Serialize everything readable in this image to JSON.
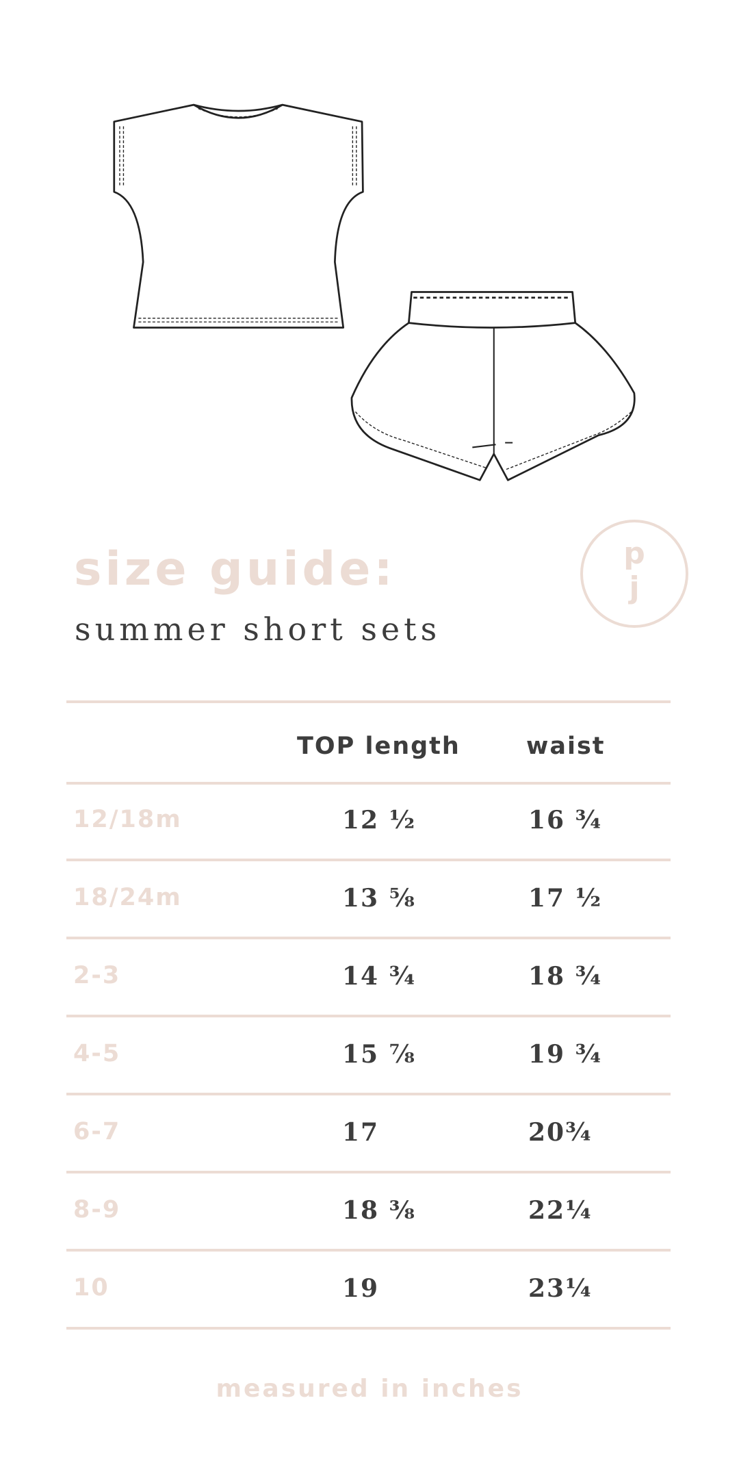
{
  "header": {
    "title": "size guide:",
    "subtitle": "summer short sets"
  },
  "logo": {
    "letters": [
      "p",
      "j"
    ]
  },
  "table": {
    "columns": [
      "",
      "TOP length",
      "waist"
    ],
    "rows": [
      {
        "size": "12/18m",
        "top_length": "12 ½",
        "waist": "16 ¾"
      },
      {
        "size": "18/24m",
        "top_length": "13 ⅝",
        "waist": "17 ½"
      },
      {
        "size": "2-3",
        "top_length": "14 ¾",
        "waist": "18 ¾"
      },
      {
        "size": "4-5",
        "top_length": "15 ⅞",
        "waist": "19 ¾"
      },
      {
        "size": "6-7",
        "top_length": "17",
        "waist": "20¾"
      },
      {
        "size": "8-9",
        "top_length": "18 ⅜",
        "waist": "22¼"
      },
      {
        "size": "10",
        "top_length": "19",
        "waist": "23¼"
      }
    ]
  },
  "footer": "measured in inches",
  "colors": {
    "accent": "#ecdcd4",
    "text": "#3d3d3d"
  }
}
